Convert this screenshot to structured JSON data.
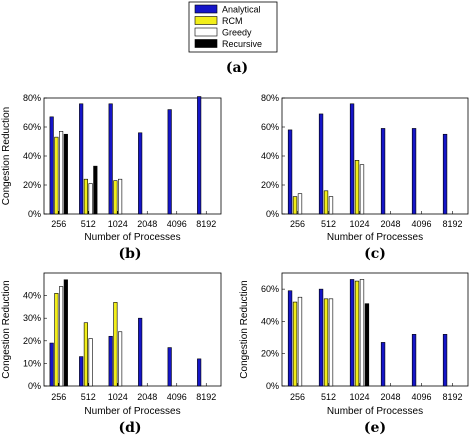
{
  "legend": {
    "entries": [
      {
        "name": "Analytical",
        "color": "#1515c8"
      },
      {
        "name": "RCM",
        "color": "#f2ee1a"
      },
      {
        "name": "Greedy",
        "color": "#ffffff"
      },
      {
        "name": "Recursive",
        "color": "#000000"
      }
    ],
    "panel_label": "(a)"
  },
  "chart_data": [
    {
      "type": "bar",
      "panel_label": "(b)",
      "categories": [
        "256",
        "512",
        "1024",
        "2048",
        "4096",
        "8192"
      ],
      "ylabel": "Congestion Reduction",
      "xlabel": "Number of Processes",
      "ylim": [
        0,
        80
      ],
      "yticks": [
        "0%",
        "20%",
        "40%",
        "60%",
        "80%"
      ],
      "series": [
        {
          "name": "Analytical",
          "values": [
            67,
            76,
            76,
            56,
            72,
            81
          ]
        },
        {
          "name": "RCM",
          "values": [
            53,
            24,
            23,
            null,
            null,
            null
          ]
        },
        {
          "name": "Greedy",
          "values": [
            57,
            21,
            24,
            null,
            null,
            null
          ]
        },
        {
          "name": "Recursive",
          "values": [
            55,
            33,
            null,
            null,
            null,
            null
          ]
        }
      ]
    },
    {
      "type": "bar",
      "panel_label": "(c)",
      "categories": [
        "256",
        "512",
        "1024",
        "2048",
        "4096",
        "8192"
      ],
      "ylabel": "",
      "xlabel": "Number of Processes",
      "ylim": [
        0,
        80
      ],
      "yticks": [
        "0%",
        "20%",
        "40%",
        "60%",
        "80%"
      ],
      "series": [
        {
          "name": "Analytical",
          "values": [
            58,
            69,
            76,
            59,
            59,
            55
          ]
        },
        {
          "name": "RCM",
          "values": [
            12,
            16,
            37,
            null,
            null,
            null
          ]
        },
        {
          "name": "Greedy",
          "values": [
            14,
            12,
            34,
            null,
            null,
            null
          ]
        },
        {
          "name": "Recursive",
          "values": [
            null,
            null,
            null,
            null,
            null,
            null
          ]
        }
      ]
    },
    {
      "type": "bar",
      "panel_label": "(d)",
      "categories": [
        "256",
        "512",
        "1024",
        "2048",
        "4096",
        "8192"
      ],
      "ylabel": "Congestion Reduction",
      "xlabel": "Number of Processes",
      "ylim": [
        0,
        50
      ],
      "yticks": [
        "0%",
        "10%",
        "20%",
        "30%",
        "40%"
      ],
      "series": [
        {
          "name": "Analytical",
          "values": [
            19,
            13,
            22,
            30,
            17,
            12
          ]
        },
        {
          "name": "RCM",
          "values": [
            41,
            28,
            37,
            null,
            null,
            null
          ]
        },
        {
          "name": "Greedy",
          "values": [
            44,
            21,
            24,
            null,
            null,
            null
          ]
        },
        {
          "name": "Recursive",
          "values": [
            47,
            null,
            null,
            null,
            null,
            null
          ]
        }
      ]
    },
    {
      "type": "bar",
      "panel_label": "(e)",
      "categories": [
        "256",
        "512",
        "1024",
        "2048",
        "4096",
        "8192"
      ],
      "ylabel": "Congestion Reduction",
      "xlabel": "Number of Processes",
      "ylim": [
        0,
        70
      ],
      "yticks": [
        "0%",
        "20%",
        "40%",
        "60%"
      ],
      "series": [
        {
          "name": "Analytical",
          "values": [
            59,
            60,
            66,
            27,
            32,
            32
          ]
        },
        {
          "name": "RCM",
          "values": [
            52,
            54,
            65,
            null,
            null,
            null
          ]
        },
        {
          "name": "Greedy",
          "values": [
            55,
            54,
            66,
            null,
            null,
            null
          ]
        },
        {
          "name": "Recursive",
          "values": [
            null,
            null,
            51,
            null,
            null,
            null
          ]
        }
      ]
    }
  ]
}
